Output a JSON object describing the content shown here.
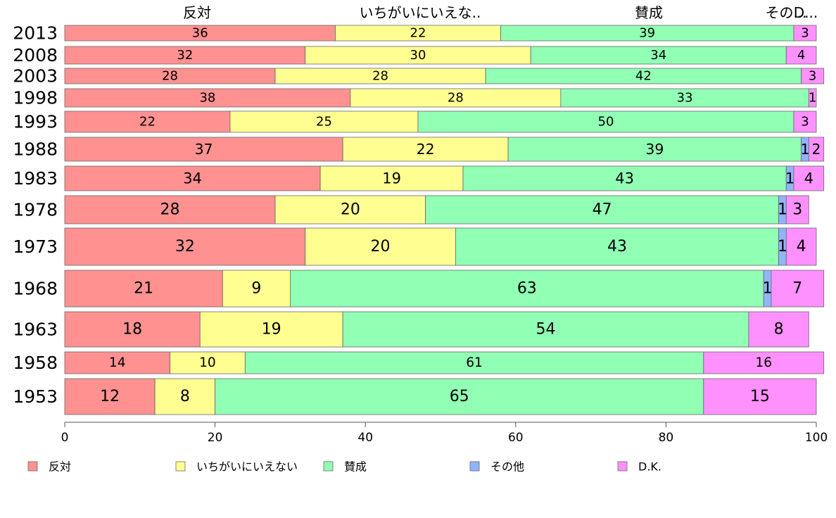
{
  "chart_data": {
    "type": "bar",
    "orientation": "horizontal",
    "stacked": true,
    "categories": [
      "2013",
      "2008",
      "2003",
      "1998",
      "1993",
      "1988",
      "1983",
      "1978",
      "1973",
      "1968",
      "1963",
      "1958",
      "1953"
    ],
    "series": [
      {
        "name": "反対",
        "color": "#ff9191",
        "values": [
          36,
          32,
          28,
          38,
          22,
          37,
          34,
          28,
          32,
          21,
          18,
          14,
          12
        ]
      },
      {
        "name": "いちがいにいえない",
        "color": "#ffff91",
        "values": [
          22,
          30,
          28,
          28,
          25,
          22,
          19,
          20,
          20,
          9,
          19,
          10,
          8
        ]
      },
      {
        "name": "賛成",
        "color": "#91ffb4",
        "values": [
          39,
          34,
          42,
          33,
          50,
          39,
          43,
          47,
          43,
          63,
          54,
          61,
          65
        ]
      },
      {
        "name": "その他",
        "color": "#91b4ff",
        "values": [
          0,
          0,
          0,
          0,
          0,
          1,
          1,
          1,
          1,
          1,
          0,
          0,
          0
        ]
      },
      {
        "name": "D.K.",
        "color": "#ff91ff",
        "values": [
          3,
          4,
          3,
          1,
          3,
          2,
          4,
          3,
          4,
          7,
          8,
          16,
          15
        ]
      }
    ],
    "top_labels": [
      "反対",
      "いちがいにいえな..",
      "賛成",
      "その...",
      "D..."
    ],
    "xlim": [
      0,
      100
    ],
    "xticks": [
      "0",
      "20",
      "40",
      "60",
      "80",
      "100"
    ],
    "xlabel": "",
    "ylabel": "",
    "legend": [
      "反対",
      "いちがいにいえない",
      "賛成",
      "その他",
      "D.K."
    ],
    "legend_position": "bottom",
    "grid": false
  }
}
